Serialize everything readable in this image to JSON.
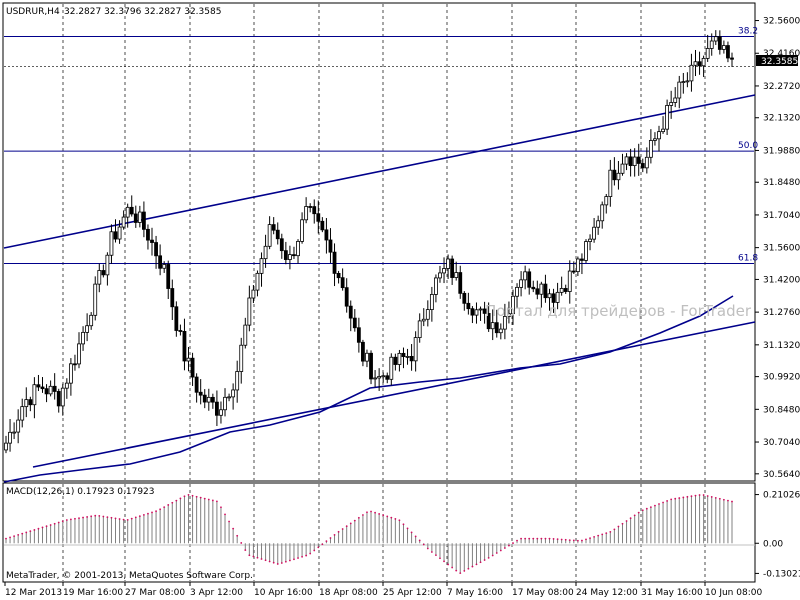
{
  "chart_data": {
    "type": "candlestick",
    "symbol_label": "USDRUR,H4",
    "ohlc_header": [
      "32.2827",
      "32.3796",
      "32.2827",
      "32.3585"
    ],
    "current_price_label": "32.3585",
    "y_ticks": [
      "32.5600",
      "32.4160",
      "32.2720",
      "32.1320",
      "31.9880",
      "31.8480",
      "31.7040",
      "31.5600",
      "31.4200",
      "31.2760",
      "31.1320",
      "30.9920",
      "30.8480",
      "30.7040",
      "30.5640"
    ],
    "ylim": [
      30.55,
      32.58
    ],
    "x_ticks": [
      "12 Mar 2013",
      "19 Mar 16:00",
      "27 Mar 08:00",
      "3 Apr 12:00",
      "10 Apr 16:00",
      "18 Apr 08:00",
      "25 Apr 12:00",
      "7 May 16:00",
      "17 May 08:00",
      "24 May 12:00",
      "31 May 16:00",
      "10 Jun 08:00"
    ],
    "fibonacci_levels": [
      {
        "label": "38.2",
        "value": 32.49
      },
      {
        "label": "50.0",
        "value": 31.985
      },
      {
        "label": "61.8",
        "value": 31.49
      }
    ],
    "price_anchors": [
      30.7,
      30.88,
      30.95,
      30.9,
      31.1,
      31.35,
      31.6,
      31.74,
      31.62,
      31.45,
      31.1,
      30.9,
      30.85,
      31.0,
      31.4,
      31.66,
      31.5,
      31.72,
      31.6,
      31.4,
      31.1,
      30.98,
      31.05,
      31.1,
      31.38,
      31.48,
      31.34,
      31.24,
      31.22,
      31.44,
      31.4,
      31.35,
      31.45,
      31.58,
      31.85,
      31.98,
      31.92,
      32.1,
      32.25,
      32.35,
      32.46,
      32.36
    ],
    "watermark": "Портал для трейдеров - ForTrader",
    "macd": {
      "label": "MACD(12,26,1) 0.17923 0.17923",
      "y_ticks": [
        "0.21026",
        "0.00",
        "-0.13021"
      ],
      "ylim": [
        -0.15,
        0.23
      ],
      "histogram_anchors": [
        0.02,
        0.06,
        0.1,
        0.12,
        0.1,
        0.14,
        0.21,
        0.18,
        -0.05,
        -0.09,
        -0.05,
        0.05,
        0.14,
        0.1,
        -0.03,
        -0.13,
        -0.06,
        0.02,
        0.02,
        0.01,
        0.05,
        0.14,
        0.19,
        0.21,
        0.18
      ]
    },
    "copyright": "MetaTrader, © 2001-2013, MetaQuotes Software Corp."
  }
}
